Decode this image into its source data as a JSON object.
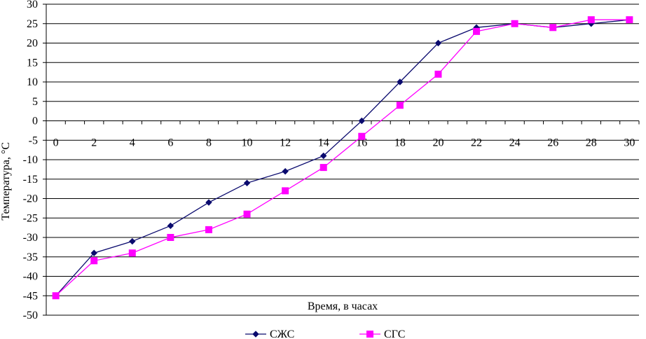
{
  "chart_data": {
    "type": "line",
    "title": "",
    "xlabel": "Время, в часах",
    "ylabel": "Температура, °С",
    "x": [
      0,
      2,
      4,
      6,
      8,
      10,
      12,
      14,
      16,
      18,
      20,
      22,
      24,
      26,
      28,
      30
    ],
    "x_tick_labels": [
      "0",
      "2",
      "4",
      "6",
      "8",
      "10",
      "12",
      "14",
      "16",
      "18",
      "20",
      "22",
      "24",
      "26",
      "28",
      "30"
    ],
    "y_tick_labels": [
      "30",
      "25",
      "20",
      "15",
      "10",
      "5",
      "0",
      "-5",
      "-10",
      "-15",
      "-20",
      "-25",
      "-30",
      "-35",
      "-40",
      "-45",
      "-50"
    ],
    "ylim": [
      -50,
      30
    ],
    "xlim": [
      0,
      30
    ],
    "grid": "horizontal",
    "legend_position": "bottom",
    "series": [
      {
        "name": "СЖС",
        "color": "#0a0a6e",
        "marker": "diamond",
        "values": [
          -45,
          -34,
          -31,
          -27,
          -21,
          -16,
          -13,
          -9,
          0,
          10,
          20,
          24,
          25,
          24,
          25,
          26
        ]
      },
      {
        "name": "СГС",
        "color": "#ff00ff",
        "marker": "square",
        "values": [
          -45,
          -36,
          -34,
          -30,
          -28,
          -24,
          -18,
          -12,
          -4,
          4,
          12,
          23,
          25,
          24,
          26,
          26
        ]
      }
    ]
  }
}
